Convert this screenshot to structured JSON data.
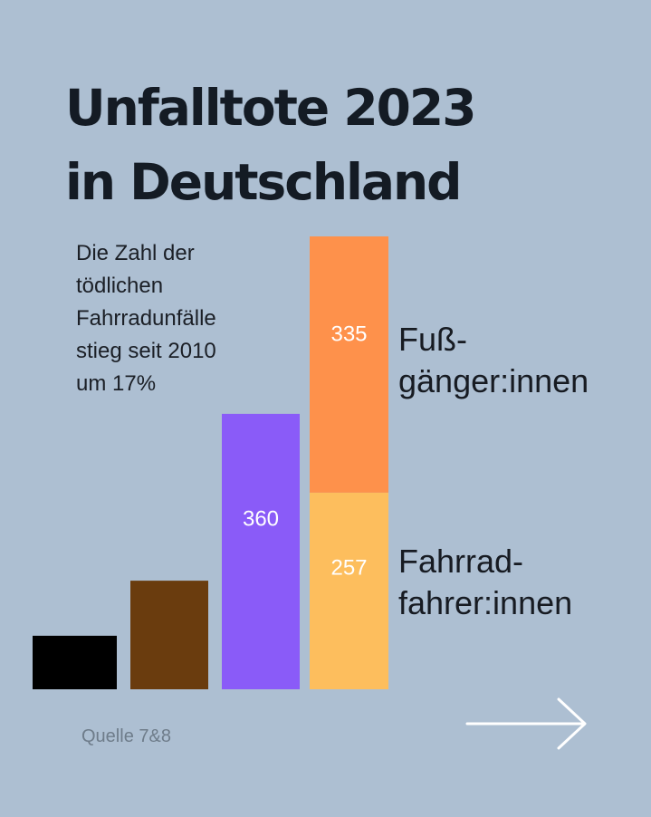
{
  "title_lines": [
    "Unfalltote 2023",
    "in Deutschland"
  ],
  "note_lines": [
    "Die Zahl der",
    "tödlichen",
    "Fahrradunfälle",
    "stieg seit 2010",
    "um 17%"
  ],
  "source": "Quelle 7&8",
  "category_labels": {
    "pedestrians": [
      "Fuß-",
      "gänger:innen"
    ],
    "cyclists": [
      "Fahrrad-",
      "fahrer:innen"
    ]
  },
  "next_arrow_icon": "arrow-right-icon",
  "colors": {
    "background": "#adbfd2",
    "black_bar": "#000000",
    "brown_bar": "#6a3c0e",
    "purple_bar": "#8a5bf8",
    "orange_bar": "#fe914b",
    "yellow_bar": "#fdbe5d",
    "bar_label": "#ffffff"
  },
  "chart_data": {
    "type": "bar",
    "stacked_last_bar": true,
    "bars": [
      {
        "total": 70,
        "segments": [
          {
            "key": "black",
            "value": 70,
            "label": "",
            "color": "#000000"
          }
        ]
      },
      {
        "total": 142,
        "segments": [
          {
            "key": "brown",
            "value": 142,
            "label": "",
            "color": "#6a3c0e"
          }
        ]
      },
      {
        "total": 360,
        "segments": [
          {
            "key": "purple",
            "value": 360,
            "label": "360",
            "color": "#8a5bf8"
          }
        ]
      },
      {
        "total": 592,
        "segments": [
          {
            "key": "Fahrradfahrer:innen",
            "value": 257,
            "label": "257",
            "color": "#fdbe5d"
          },
          {
            "key": "Fußgänger:innen",
            "value": 335,
            "label": "335",
            "color": "#fe914b"
          }
        ]
      }
    ]
  }
}
